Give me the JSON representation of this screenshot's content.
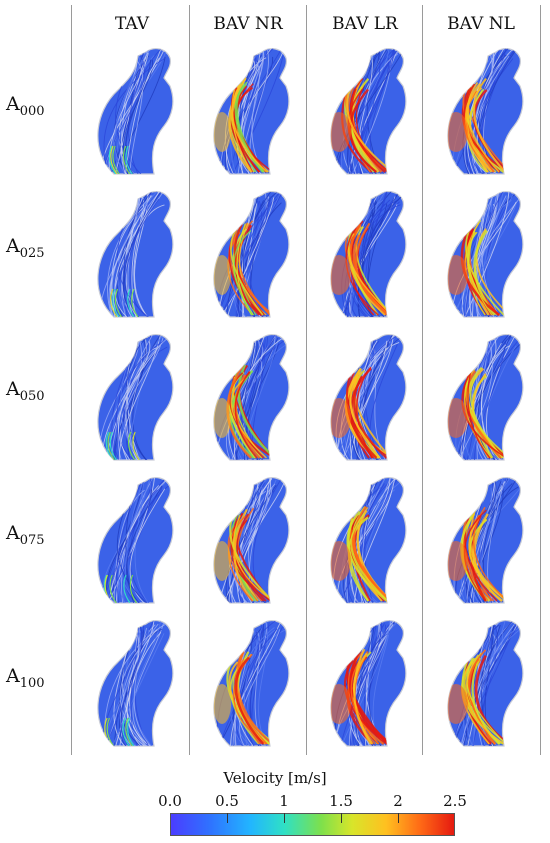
{
  "columns": [
    "TAV",
    "BAV NR",
    "BAV LR",
    "BAV NL"
  ],
  "rows": [
    {
      "base": "A",
      "sub": "000"
    },
    {
      "base": "A",
      "sub": "025"
    },
    {
      "base": "A",
      "sub": "050"
    },
    {
      "base": "A",
      "sub": "075"
    },
    {
      "base": "A",
      "sub": "100"
    }
  ],
  "colorbar": {
    "title": "Velocity [m/s]",
    "ticks": [
      "0.0",
      "0.5",
      "1",
      "1.5",
      "2",
      "2.5"
    ],
    "range": [
      0.0,
      2.5
    ],
    "colors": [
      "#4a3dff",
      "#2f73ff",
      "#22b5ff",
      "#2fe0c5",
      "#7de04c",
      "#d8e52a",
      "#ffc020",
      "#ff6a16",
      "#e51a10"
    ]
  }
}
